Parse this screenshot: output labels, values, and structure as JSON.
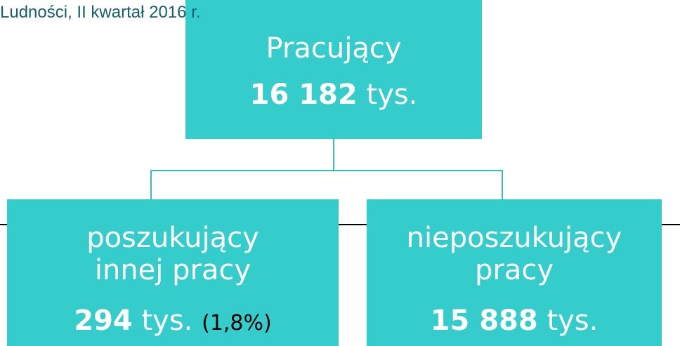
{
  "header": {
    "title": "Ludności, II kwartał 2016 r."
  },
  "nodes": [
    {
      "label": [
        "Pracujący"
      ],
      "value": "16 182",
      "unit": "tys."
    },
    {
      "label": [
        "poszukujący",
        "innej pracy"
      ],
      "value": "294",
      "unit": "tys.",
      "note": "(1,8%)"
    },
    {
      "label": [
        "nieposzukujący",
        "pracy"
      ],
      "value": "15 888",
      "unit": "tys."
    }
  ]
}
